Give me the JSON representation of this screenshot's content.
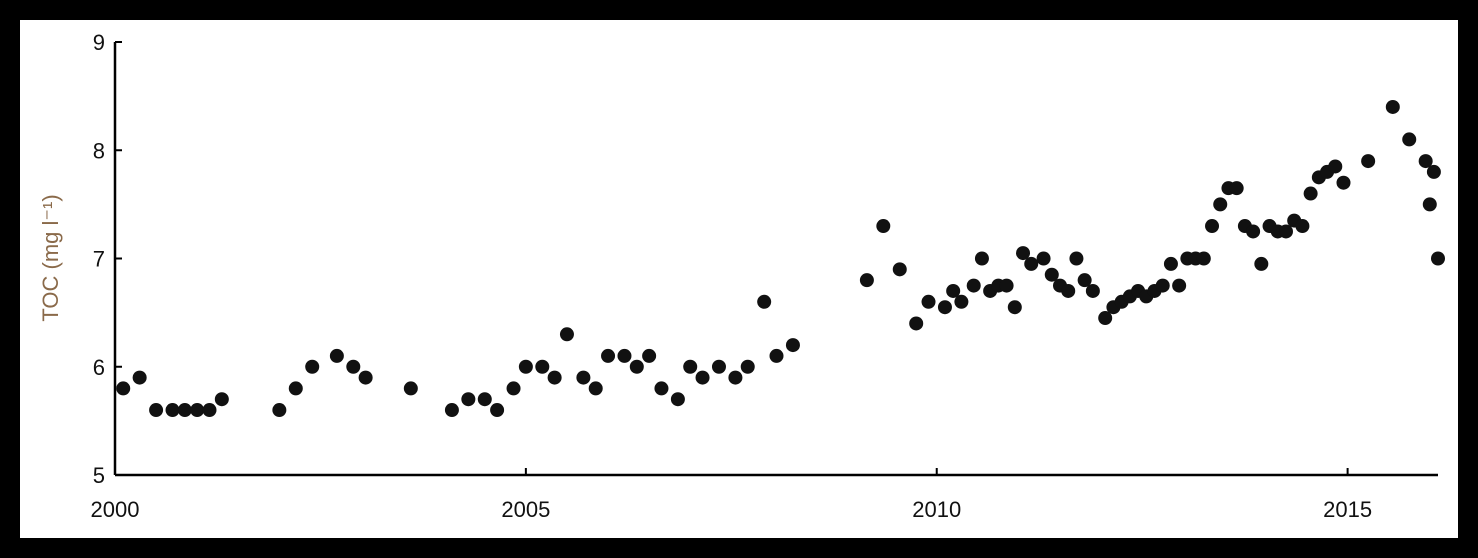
{
  "chart_data": {
    "type": "scatter",
    "title": "",
    "ylabel": "TOC (mg l⁻¹)",
    "xlabel": "",
    "xlim": [
      2000,
      2016.1
    ],
    "ylim": [
      5,
      9
    ],
    "xticks": [
      "2000",
      "2005",
      "2010",
      "2015"
    ],
    "yticks": [
      "5",
      "6",
      "7",
      "8",
      "9"
    ],
    "grid": false,
    "legend": "none",
    "point_color": "#111111",
    "series": [
      {
        "points": [
          [
            2000.1,
            5.8
          ],
          [
            2000.3,
            5.9
          ],
          [
            2000.5,
            5.6
          ],
          [
            2000.7,
            5.6
          ],
          [
            2000.85,
            5.6
          ],
          [
            2001.0,
            5.6
          ],
          [
            2001.15,
            5.6
          ],
          [
            2001.3,
            5.7
          ],
          [
            2002.0,
            5.6
          ],
          [
            2002.2,
            5.8
          ],
          [
            2002.4,
            6.0
          ],
          [
            2002.7,
            6.1
          ],
          [
            2002.9,
            6.0
          ],
          [
            2003.05,
            5.9
          ],
          [
            2003.6,
            5.8
          ],
          [
            2004.1,
            5.6
          ],
          [
            2004.3,
            5.7
          ],
          [
            2004.5,
            5.7
          ],
          [
            2004.65,
            5.6
          ],
          [
            2004.85,
            5.8
          ],
          [
            2005.0,
            6.0
          ],
          [
            2005.2,
            6.0
          ],
          [
            2005.35,
            5.9
          ],
          [
            2005.5,
            6.3
          ],
          [
            2005.7,
            5.9
          ],
          [
            2005.85,
            5.8
          ],
          [
            2006.0,
            6.1
          ],
          [
            2006.2,
            6.1
          ],
          [
            2006.35,
            6.0
          ],
          [
            2006.5,
            6.1
          ],
          [
            2006.65,
            5.8
          ],
          [
            2006.85,
            5.7
          ],
          [
            2007.0,
            6.0
          ],
          [
            2007.15,
            5.9
          ],
          [
            2007.35,
            6.0
          ],
          [
            2007.55,
            5.9
          ],
          [
            2007.7,
            6.0
          ],
          [
            2007.9,
            6.6
          ],
          [
            2008.05,
            6.1
          ],
          [
            2008.25,
            6.2
          ],
          [
            2009.15,
            6.8
          ],
          [
            2009.35,
            7.3
          ],
          [
            2009.55,
            6.9
          ],
          [
            2009.75,
            6.4
          ],
          [
            2009.9,
            6.6
          ],
          [
            2010.1,
            6.55
          ],
          [
            2010.2,
            6.7
          ],
          [
            2010.3,
            6.6
          ],
          [
            2010.45,
            6.75
          ],
          [
            2010.55,
            7.0
          ],
          [
            2010.65,
            6.7
          ],
          [
            2010.75,
            6.75
          ],
          [
            2010.85,
            6.75
          ],
          [
            2010.95,
            6.55
          ],
          [
            2011.05,
            7.05
          ],
          [
            2011.15,
            6.95
          ],
          [
            2011.3,
            7.0
          ],
          [
            2011.4,
            6.85
          ],
          [
            2011.5,
            6.75
          ],
          [
            2011.6,
            6.7
          ],
          [
            2011.7,
            7.0
          ],
          [
            2011.8,
            6.8
          ],
          [
            2011.9,
            6.7
          ],
          [
            2012.05,
            6.45
          ],
          [
            2012.15,
            6.55
          ],
          [
            2012.25,
            6.6
          ],
          [
            2012.35,
            6.65
          ],
          [
            2012.45,
            6.7
          ],
          [
            2012.55,
            6.65
          ],
          [
            2012.65,
            6.7
          ],
          [
            2012.75,
            6.75
          ],
          [
            2012.85,
            6.95
          ],
          [
            2012.95,
            6.75
          ],
          [
            2013.05,
            7.0
          ],
          [
            2013.15,
            7.0
          ],
          [
            2013.25,
            7.0
          ],
          [
            2013.35,
            7.3
          ],
          [
            2013.45,
            7.5
          ],
          [
            2013.55,
            7.65
          ],
          [
            2013.65,
            7.65
          ],
          [
            2013.75,
            7.3
          ],
          [
            2013.85,
            7.25
          ],
          [
            2013.95,
            6.95
          ],
          [
            2014.05,
            7.3
          ],
          [
            2014.15,
            7.25
          ],
          [
            2014.25,
            7.25
          ],
          [
            2014.35,
            7.35
          ],
          [
            2014.45,
            7.3
          ],
          [
            2014.55,
            7.6
          ],
          [
            2014.65,
            7.75
          ],
          [
            2014.75,
            7.8
          ],
          [
            2014.85,
            7.85
          ],
          [
            2014.95,
            7.7
          ],
          [
            2015.25,
            7.9
          ],
          [
            2015.55,
            8.4
          ],
          [
            2015.75,
            8.1
          ],
          [
            2015.95,
            7.9
          ],
          [
            2016.0,
            7.5
          ],
          [
            2016.05,
            7.8
          ],
          [
            2016.1,
            7.0
          ]
        ]
      }
    ]
  }
}
